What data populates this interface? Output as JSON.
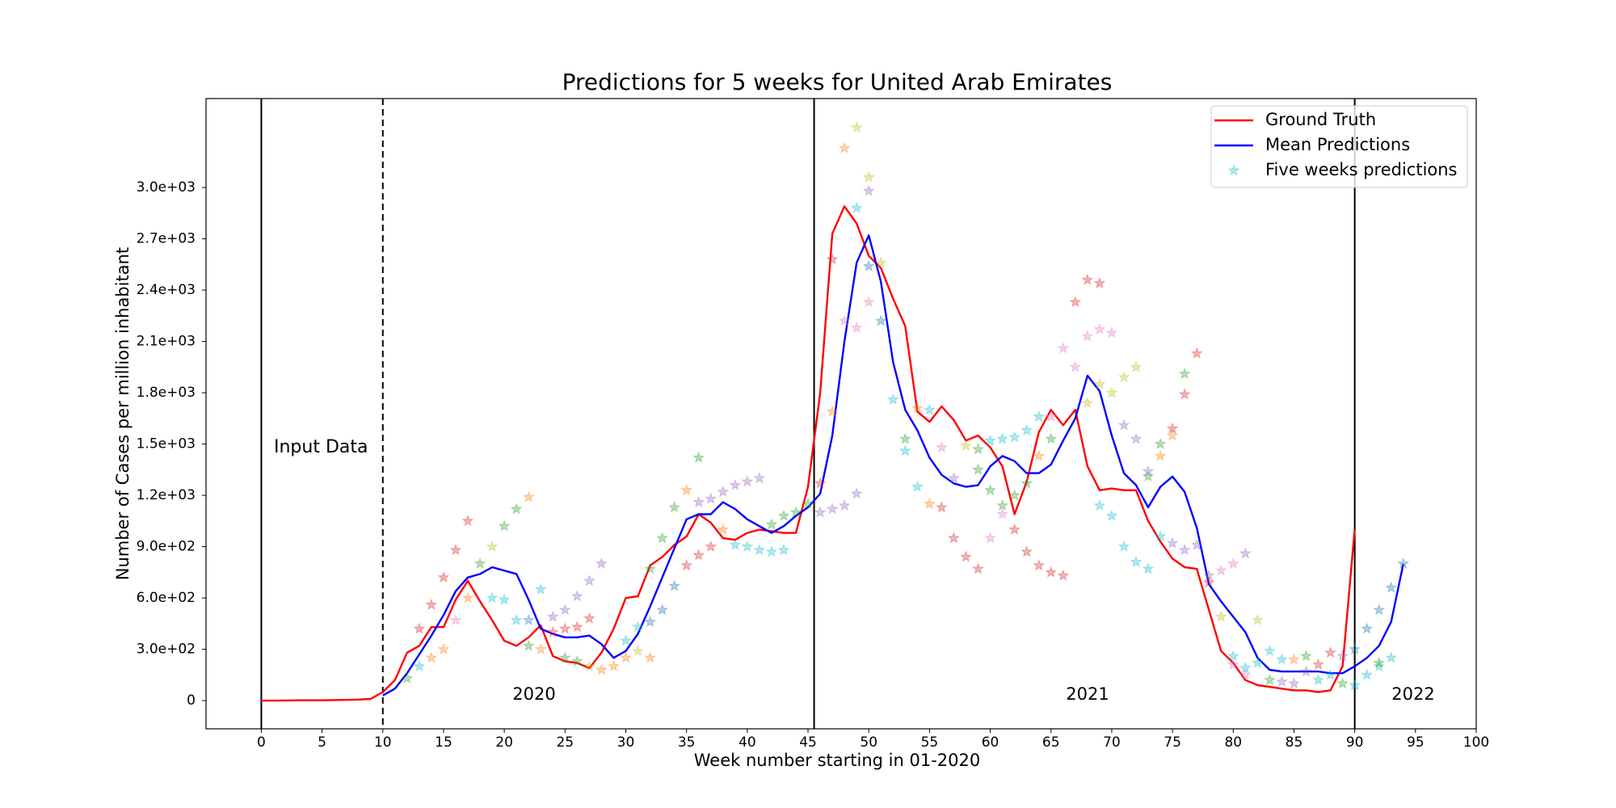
{
  "chart_data": {
    "type": "line",
    "title": "Predictions for 5 weeks for United Arab Emirates",
    "x_label": "Week number starting in 01-2020",
    "y_label": "Number of Cases per million inhabitant",
    "xlim": [
      -4.55,
      100
    ],
    "ylim": [
      -165,
      3520
    ],
    "xticks": [
      0,
      5,
      10,
      15,
      20,
      25,
      30,
      35,
      40,
      45,
      50,
      55,
      60,
      65,
      70,
      75,
      80,
      85,
      90,
      95,
      100
    ],
    "yticks": [
      0,
      {
        "value": 300,
        "label": "3.0e+02"
      },
      {
        "value": 600,
        "label": "6.0e+02"
      },
      {
        "value": 900,
        "label": "9.0e+02"
      },
      {
        "value": 1200,
        "label": "1.2e+03"
      },
      {
        "value": 1500,
        "label": "1.5e+03"
      },
      {
        "value": 1800,
        "label": "1.8e+03"
      },
      {
        "value": 2100,
        "label": "2.1e+03"
      },
      {
        "value": 2400,
        "label": "2.4e+03"
      },
      {
        "value": 2700,
        "label": "2.7e+03"
      },
      {
        "value": 3000,
        "label": "3.0e+03"
      }
    ],
    "grid": false,
    "legend": "upper right",
    "vlines": [
      0,
      10,
      45.5,
      90
    ],
    "vline_styles": [
      "solid",
      "dashed",
      "solid",
      "solid"
    ],
    "annotations": [
      "Input Data",
      "2020",
      "2021",
      "2022"
    ],
    "series": [
      {
        "name": "Ground Truth",
        "kind": "line",
        "color": "#ff0000",
        "x": [
          0,
          1,
          2,
          3,
          4,
          5,
          6,
          7,
          8,
          9,
          10,
          11,
          12,
          13,
          14,
          15,
          16,
          17,
          18,
          19,
          20,
          21,
          22,
          23,
          24,
          25,
          26,
          27,
          28,
          29,
          30,
          31,
          32,
          33,
          34,
          35,
          36,
          37,
          38,
          39,
          40,
          41,
          42,
          43,
          44,
          45,
          46,
          47,
          48,
          49,
          50,
          51,
          52,
          53,
          54,
          55,
          56,
          57,
          58,
          59,
          60,
          61,
          62,
          63,
          64,
          65,
          66,
          67,
          68,
          69,
          70,
          71,
          72,
          73,
          74,
          75,
          76,
          77,
          78,
          79,
          80,
          81,
          82,
          83,
          84,
          85,
          86,
          87,
          88,
          89,
          90
        ],
        "values": [
          0,
          0,
          1,
          2,
          2,
          2,
          3,
          4,
          6,
          10,
          50,
          120,
          280,
          320,
          430,
          430,
          590,
          700,
          580,
          470,
          350,
          320,
          370,
          440,
          260,
          230,
          220,
          190,
          280,
          420,
          600,
          610,
          790,
          840,
          910,
          960,
          1090,
          1040,
          950,
          940,
          980,
          1000,
          990,
          980,
          980,
          1250,
          1800,
          2730,
          2890,
          2790,
          2600,
          2530,
          2350,
          2190,
          1690,
          1630,
          1720,
          1640,
          1520,
          1550,
          1480,
          1370,
          1090,
          1280,
          1570,
          1700,
          1610,
          1700,
          1370,
          1230,
          1240,
          1230,
          1230,
          1050,
          930,
          830,
          780,
          770,
          530,
          290,
          220,
          120,
          90,
          80,
          70,
          60,
          60,
          50,
          60,
          200,
          1000
        ]
      },
      {
        "name": "Mean Predictions",
        "kind": "line",
        "color": "#0000ff",
        "x": [
          10,
          11,
          12,
          13,
          14,
          15,
          16,
          17,
          18,
          19,
          20,
          21,
          22,
          23,
          24,
          25,
          26,
          27,
          28,
          29,
          30,
          31,
          32,
          33,
          34,
          35,
          36,
          37,
          38,
          39,
          40,
          41,
          42,
          43,
          44,
          45,
          46,
          47,
          48,
          49,
          50,
          51,
          52,
          53,
          54,
          55,
          56,
          57,
          58,
          59,
          60,
          61,
          62,
          63,
          64,
          65,
          66,
          67,
          68,
          69,
          70,
          71,
          72,
          73,
          74,
          75,
          76,
          77,
          78,
          79,
          80,
          81,
          82,
          83,
          84,
          85,
          86,
          87,
          88,
          89,
          90,
          91,
          92,
          93,
          94
        ],
        "values": [
          30,
          70,
          160,
          270,
          380,
          500,
          640,
          720,
          740,
          780,
          760,
          740,
          590,
          420,
          390,
          370,
          370,
          380,
          330,
          250,
          290,
          390,
          550,
          720,
          890,
          1060,
          1090,
          1090,
          1160,
          1120,
          1060,
          1020,
          980,
          1020,
          1080,
          1130,
          1210,
          1550,
          2100,
          2560,
          2720,
          2450,
          1980,
          1700,
          1580,
          1420,
          1320,
          1270,
          1250,
          1260,
          1370,
          1430,
          1400,
          1330,
          1330,
          1380,
          1520,
          1650,
          1900,
          1810,
          1550,
          1330,
          1260,
          1130,
          1250,
          1310,
          1220,
          1010,
          680,
          580,
          490,
          400,
          250,
          180,
          170,
          170,
          170,
          170,
          160,
          160,
          200,
          250,
          320,
          460,
          800
        ]
      },
      {
        "name": "Five weeks predictions",
        "kind": "scatter",
        "color": "#17becf",
        "opacity": 0.35,
        "x": [
          12,
          13,
          14,
          13,
          14,
          15,
          16,
          17,
          15,
          16,
          17,
          18,
          19,
          19,
          20,
          21,
          22,
          20,
          21,
          22,
          23,
          22,
          23,
          24,
          25,
          26,
          27,
          28,
          24,
          25,
          26,
          27,
          25,
          26,
          27,
          28,
          29,
          30,
          31,
          32,
          30,
          31,
          32,
          33,
          34,
          32,
          33,
          34,
          35,
          36,
          35,
          36,
          37,
          38,
          36,
          37,
          38,
          39,
          40,
          41,
          39,
          40,
          41,
          42,
          43,
          42,
          43,
          44,
          45,
          46,
          47,
          48,
          49,
          46,
          47,
          47,
          48,
          49,
          48,
          49,
          50,
          49,
          50,
          50,
          51,
          50,
          51,
          52,
          53,
          54,
          53,
          54,
          55,
          56,
          57,
          58,
          59,
          55,
          56,
          57,
          58,
          59,
          60,
          61,
          62,
          63,
          64,
          59,
          60,
          61,
          62,
          63,
          64,
          65,
          60,
          61,
          62,
          63,
          64,
          65,
          66,
          65,
          66,
          67,
          68,
          69,
          67,
          68,
          69,
          70,
          68,
          69,
          70,
          71,
          72,
          69,
          70,
          71,
          72,
          73,
          74,
          71,
          72,
          73,
          74,
          75,
          75,
          76,
          77,
          76,
          74,
          73,
          75,
          76,
          77,
          78,
          79,
          80,
          81,
          78,
          79,
          80,
          81,
          82,
          83,
          84,
          80,
          81,
          82,
          83,
          84,
          85,
          86,
          87,
          88,
          89,
          85,
          86,
          87,
          88,
          89,
          90,
          91,
          92,
          93,
          90,
          91,
          92,
          93,
          94,
          92
        ],
        "values": [
          130,
          200,
          250,
          420,
          560,
          720,
          880,
          1050,
          300,
          470,
          600,
          800,
          900,
          600,
          1020,
          1120,
          1190,
          590,
          470,
          470,
          650,
          320,
          300,
          490,
          530,
          610,
          700,
          800,
          400,
          420,
          430,
          480,
          250,
          230,
          200,
          180,
          200,
          250,
          290,
          250,
          350,
          430,
          460,
          530,
          670,
          770,
          950,
          1130,
          1230,
          1420,
          790,
          850,
          900,
          1000,
          1160,
          1180,
          1220,
          1260,
          1280,
          1300,
          910,
          900,
          880,
          870,
          880,
          1030,
          1080,
          1100,
          1150,
          1100,
          1120,
          1140,
          1210,
          1270,
          1690,
          2580,
          3230,
          3350,
          2220,
          2180,
          2330,
          2880,
          3060,
          2980,
          2560,
          2540,
          2220,
          1760,
          1460,
          1250,
          1530,
          1710,
          1150,
          1130,
          950,
          840,
          770,
          1700,
          1480,
          1300,
          1490,
          1470,
          1520,
          1530,
          1540,
          1580,
          1660,
          1350,
          1230,
          1140,
          1200,
          1270,
          1430,
          1530,
          950,
          1090,
          1000,
          870,
          790,
          750,
          730,
          1660,
          2060,
          2330,
          2460,
          2440,
          1950,
          2130,
          2170,
          2150,
          1740,
          1850,
          1800,
          1890,
          1950,
          1140,
          1080,
          900,
          810,
          770,
          960,
          1610,
          1530,
          1340,
          1430,
          1550,
          1590,
          1790,
          2030,
          1910,
          1500,
          1310,
          920,
          880,
          910,
          730,
          760,
          800,
          860,
          690,
          490,
          260,
          190,
          220,
          290,
          240,
          210,
          150,
          470,
          120,
          110,
          100,
          170,
          210,
          280,
          260,
          240,
          260,
          120,
          150,
          100,
          90,
          150,
          200,
          250,
          300,
          420,
          530,
          660,
          800,
          220
        ],
        "colors": [
          "#2ca02c",
          "#17becf",
          "#ff7f0e",
          "#d62728",
          "#d62728",
          "#d62728",
          "#d62728",
          "#d62728",
          "#ff7f0e",
          "#e377c2",
          "#ff7f0e",
          "#2ca02c",
          "#bcbd22",
          "#17becf",
          "#2ca02c",
          "#2ca02c",
          "#ff7f0e",
          "#17becf",
          "#17becf",
          "#1f77b4",
          "#17becf",
          "#2ca02c",
          "#ff7f0e",
          "#9467bd",
          "#9467bd",
          "#9467bd",
          "#9467bd",
          "#9467bd",
          "#d62728",
          "#d62728",
          "#d62728",
          "#d62728",
          "#2ca02c",
          "#2ca02c",
          "#bcbd22",
          "#ff7f0e",
          "#ff7f0e",
          "#ff7f0e",
          "#bcbd22",
          "#ff7f0e",
          "#17becf",
          "#17becf",
          "#1f77b4",
          "#1f77b4",
          "#1f77b4",
          "#2ca02c",
          "#2ca02c",
          "#2ca02c",
          "#ff7f0e",
          "#2ca02c",
          "#d62728",
          "#d62728",
          "#d62728",
          "#ff7f0e",
          "#9467bd",
          "#9467bd",
          "#9467bd",
          "#9467bd",
          "#9467bd",
          "#9467bd",
          "#17becf",
          "#17becf",
          "#17becf",
          "#17becf",
          "#17becf",
          "#2ca02c",
          "#2ca02c",
          "#2ca02c",
          "#2ca02c",
          "#9467bd",
          "#9467bd",
          "#9467bd",
          "#9467bd",
          "#d62728",
          "#ff7f0e",
          "#d62728",
          "#ff7f0e",
          "#bcbd22",
          "#e377c2",
          "#e377c2",
          "#e377c2",
          "#17becf",
          "#bcbd22",
          "#9467bd",
          "#bcbd22",
          "#1f77b4",
          "#1f77b4",
          "#17becf",
          "#17becf",
          "#17becf",
          "#2ca02c",
          "#ff7f0e",
          "#ff7f0e",
          "#d62728",
          "#d62728",
          "#d62728",
          "#d62728",
          "#17becf",
          "#e377c2",
          "#9467bd",
          "#bcbd22",
          "#2ca02c",
          "#17becf",
          "#17becf",
          "#17becf",
          "#17becf",
          "#17becf",
          "#2ca02c",
          "#2ca02c",
          "#2ca02c",
          "#2ca02c",
          "#2ca02c",
          "#ff7f0e",
          "#2ca02c",
          "#e377c2",
          "#e377c2",
          "#d62728",
          "#d62728",
          "#d62728",
          "#d62728",
          "#d62728",
          "#e377c2",
          "#e377c2",
          "#d62728",
          "#d62728",
          "#d62728",
          "#e377c2",
          "#e377c2",
          "#e377c2",
          "#e377c2",
          "#bcbd22",
          "#bcbd22",
          "#bcbd22",
          "#bcbd22",
          "#bcbd22",
          "#17becf",
          "#17becf",
          "#17becf",
          "#17becf",
          "#17becf",
          "#17becf",
          "#9467bd",
          "#9467bd",
          "#9467bd",
          "#ff7f0e",
          "#ff7f0e",
          "#d62728",
          "#d62728",
          "#d62728",
          "#2ca02c",
          "#2ca02c",
          "#2ca02c",
          "#9467bd",
          "#9467bd",
          "#9467bd",
          "#9467bd",
          "#e377c2",
          "#e377c2",
          "#9467bd",
          "#d62728",
          "#bcbd22",
          "#17becf",
          "#17becf",
          "#17becf",
          "#17becf",
          "#17becf",
          "#e377c2",
          "#e377c2",
          "#bcbd22",
          "#2ca02c",
          "#9467bd",
          "#9467bd",
          "#9467bd",
          "#d62728",
          "#d62728",
          "#9467bd",
          "#ff7f0e",
          "#2ca02c",
          "#17becf",
          "#17becf",
          "#2ca02c",
          "#17becf",
          "#17becf",
          "#17becf",
          "#17becf",
          "#1f77b4",
          "#1f77b4",
          "#1f77b4",
          "#1f77b4",
          "#1f77b4",
          "#2ca02c"
        ]
      }
    ]
  }
}
